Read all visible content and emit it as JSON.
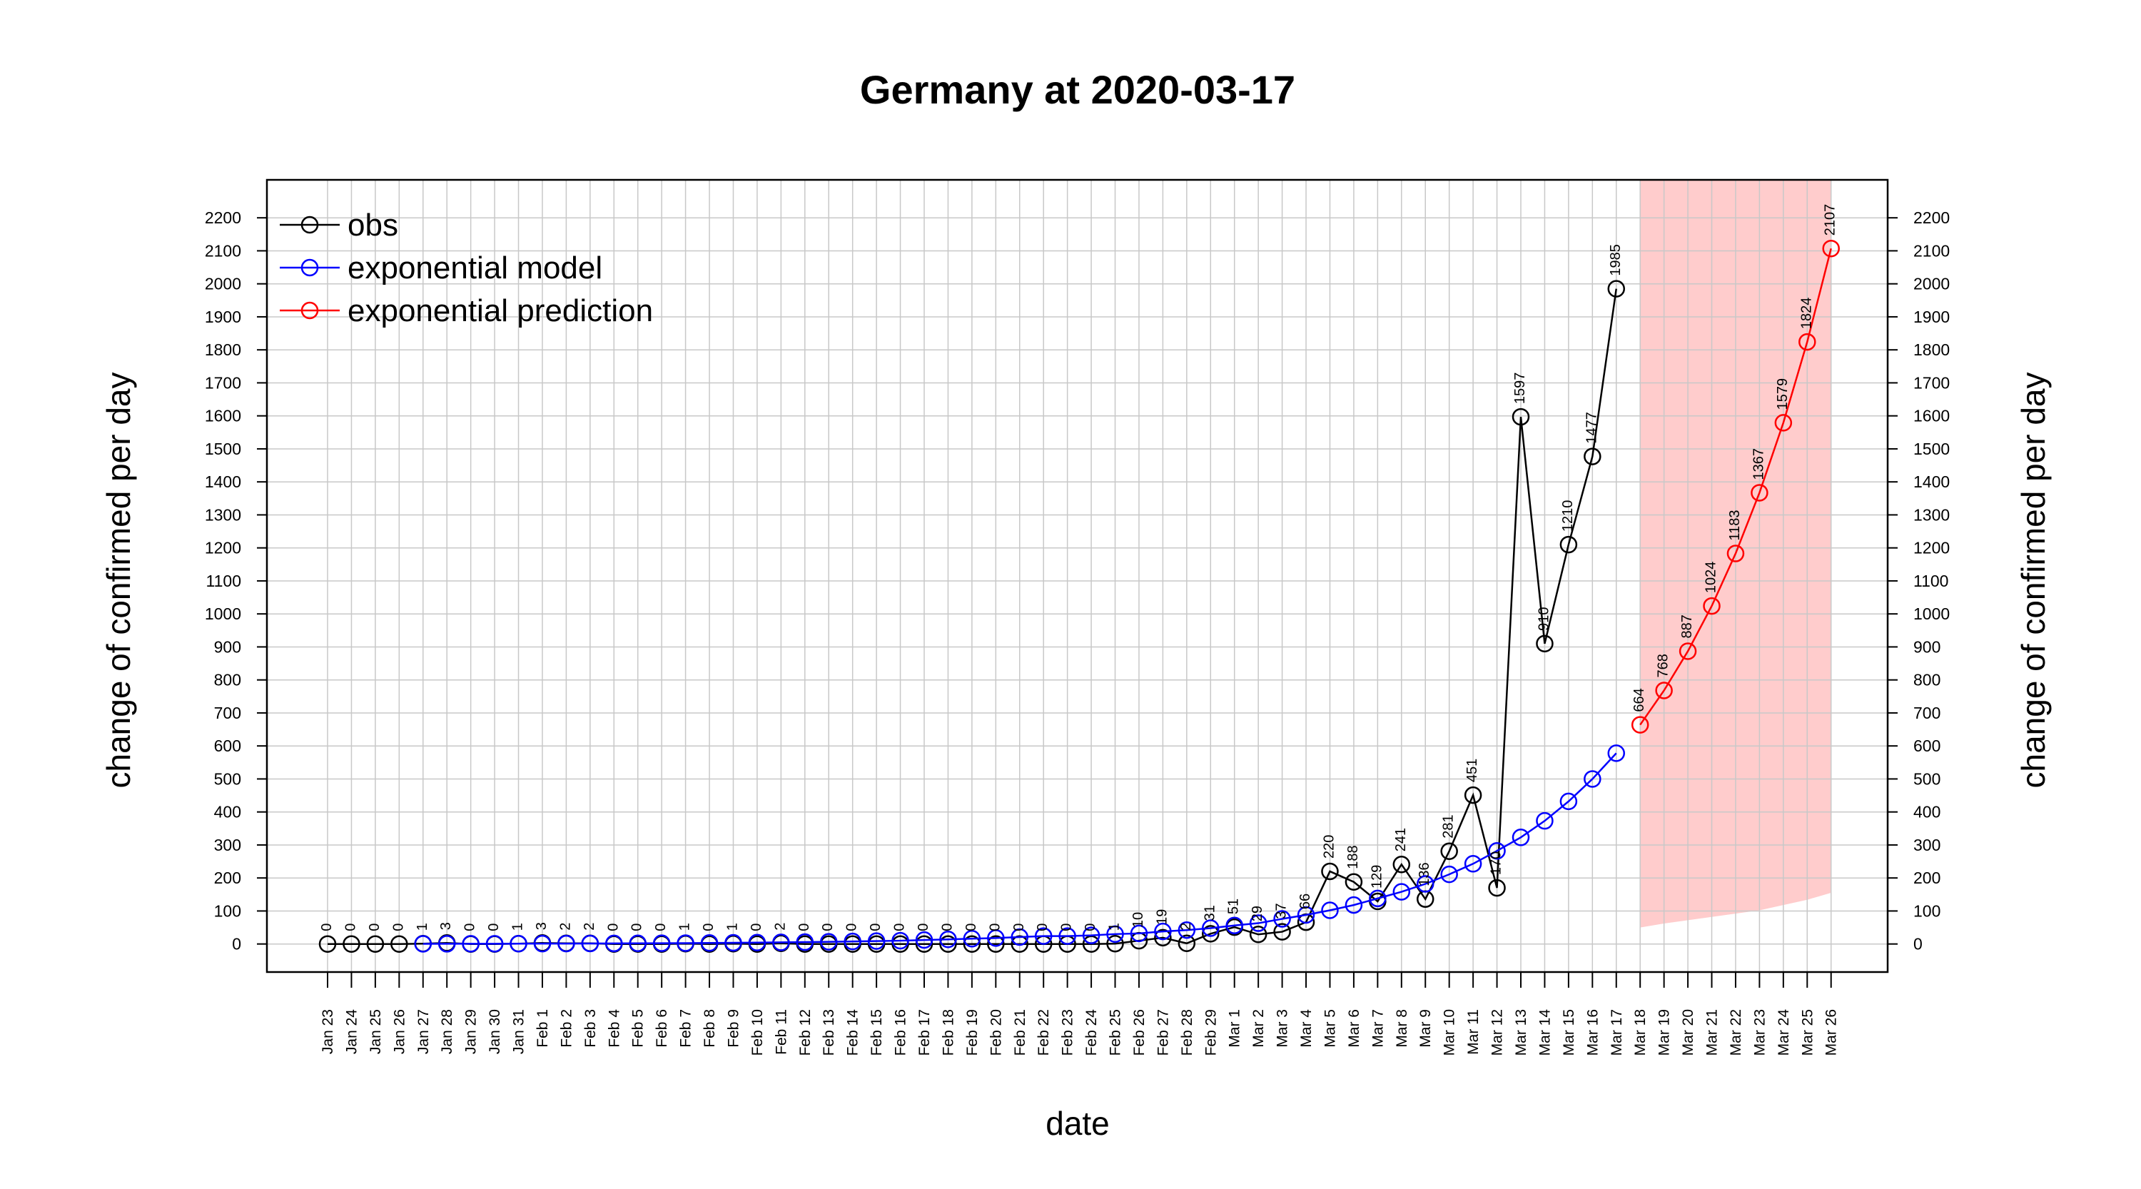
{
  "chart_data": {
    "type": "line",
    "title": "Germany at 2020-03-17",
    "xlabel": "date",
    "ylabel": "change of confirmed per day",
    "ylabel_right": "change of confirmed per day",
    "y_ticks": [
      0,
      100,
      200,
      300,
      400,
      500,
      600,
      700,
      800,
      900,
      1000,
      1100,
      1200,
      1300,
      1400,
      1500,
      1600,
      1700,
      1800,
      1900,
      2000,
      2100,
      2200
    ],
    "ylim": [
      -85,
      2315
    ],
    "grid": true,
    "legend_position": "top-left",
    "dates": [
      "Jan 23",
      "Jan 24",
      "Jan 25",
      "Jan 26",
      "Jan 27",
      "Jan 28",
      "Jan 29",
      "Jan 30",
      "Jan 31",
      "Feb 1",
      "Feb 2",
      "Feb 3",
      "Feb 4",
      "Feb 5",
      "Feb 6",
      "Feb 7",
      "Feb 8",
      "Feb 9",
      "Feb 10",
      "Feb 11",
      "Feb 12",
      "Feb 13",
      "Feb 14",
      "Feb 15",
      "Feb 16",
      "Feb 17",
      "Feb 18",
      "Feb 19",
      "Feb 20",
      "Feb 21",
      "Feb 22",
      "Feb 23",
      "Feb 24",
      "Feb 25",
      "Feb 26",
      "Feb 27",
      "Feb 28",
      "Feb 29",
      "Mar 1",
      "Mar 2",
      "Mar 3",
      "Mar 4",
      "Mar 5",
      "Mar 6",
      "Mar 7",
      "Mar 8",
      "Mar 9",
      "Mar 10",
      "Mar 11",
      "Mar 12",
      "Mar 13",
      "Mar 14",
      "Mar 15",
      "Mar 16",
      "Mar 17",
      "Mar 18",
      "Mar 19",
      "Mar 20",
      "Mar 21",
      "Mar 22",
      "Mar 23",
      "Mar 24",
      "Mar 25",
      "Mar 26"
    ],
    "series": [
      {
        "name": "obs",
        "color": "#000000",
        "x": [
          "Jan 23",
          "Jan 24",
          "Jan 25",
          "Jan 26",
          "Jan 27",
          "Jan 28",
          "Jan 29",
          "Jan 30",
          "Jan 31",
          "Feb 1",
          "Feb 2",
          "Feb 3",
          "Feb 4",
          "Feb 5",
          "Feb 6",
          "Feb 7",
          "Feb 8",
          "Feb 9",
          "Feb 10",
          "Feb 11",
          "Feb 12",
          "Feb 13",
          "Feb 14",
          "Feb 15",
          "Feb 16",
          "Feb 17",
          "Feb 18",
          "Feb 19",
          "Feb 20",
          "Feb 21",
          "Feb 22",
          "Feb 23",
          "Feb 24",
          "Feb 25",
          "Feb 26",
          "Feb 27",
          "Feb 28",
          "Feb 29",
          "Mar 1",
          "Mar 2",
          "Mar 3",
          "Mar 4",
          "Mar 5",
          "Mar 6",
          "Mar 7",
          "Mar 8",
          "Mar 9",
          "Mar 10",
          "Mar 11",
          "Mar 12",
          "Mar 13",
          "Mar 14",
          "Mar 15",
          "Mar 16",
          "Mar 17"
        ],
        "values": [
          0,
          0,
          0,
          0,
          1,
          3,
          0,
          0,
          1,
          3,
          2,
          2,
          0,
          0,
          0,
          1,
          0,
          1,
          0,
          2,
          0,
          0,
          0,
          0,
          0,
          0,
          0,
          0,
          0,
          0,
          0,
          0,
          0,
          1,
          10,
          19,
          2,
          31,
          51,
          29,
          37,
          66,
          220,
          188,
          129,
          241,
          136,
          281,
          451,
          170,
          1597,
          910,
          1210,
          1477,
          1985
        ],
        "labels": [
          "0",
          "0",
          "0",
          "0",
          "1",
          "3",
          "0",
          "0",
          "1",
          "3",
          "2",
          "2",
          "0",
          "0",
          "0",
          "1",
          "0",
          "1",
          "0",
          "2",
          "0",
          "0",
          "0",
          "0",
          "0",
          "0",
          "0",
          "0",
          "0",
          "0",
          "0",
          "0",
          "0",
          "1",
          "10",
          "19",
          "2",
          "31",
          "51",
          "29",
          "37",
          "66",
          "220",
          "188",
          "129",
          "241",
          "136",
          "281",
          "451",
          "170",
          "1597",
          "910",
          "1210",
          "1477",
          "1985"
        ]
      },
      {
        "name": "exponential model",
        "color": "#0000ff",
        "x": [
          "Jan 27",
          "Jan 28",
          "Jan 29",
          "Jan 30",
          "Jan 31",
          "Feb 1",
          "Feb 2",
          "Feb 3",
          "Feb 4",
          "Feb 5",
          "Feb 6",
          "Feb 7",
          "Feb 8",
          "Feb 9",
          "Feb 10",
          "Feb 11",
          "Feb 12",
          "Feb 13",
          "Feb 14",
          "Feb 15",
          "Feb 16",
          "Feb 17",
          "Feb 18",
          "Feb 19",
          "Feb 20",
          "Feb 21",
          "Feb 22",
          "Feb 23",
          "Feb 24",
          "Feb 25",
          "Feb 26",
          "Feb 27",
          "Feb 28",
          "Feb 29",
          "Mar 1",
          "Mar 2",
          "Mar 3",
          "Mar 4",
          "Mar 5",
          "Mar 6",
          "Mar 7",
          "Mar 8",
          "Mar 9",
          "Mar 10",
          "Mar 11",
          "Mar 12",
          "Mar 13",
          "Mar 14",
          "Mar 15",
          "Mar 16",
          "Mar 17"
        ],
        "values": [
          0.5,
          0.6,
          0.7,
          0.8,
          0.9,
          1.1,
          1.3,
          1.5,
          1.7,
          2,
          2.3,
          2.7,
          3.1,
          3.6,
          4.2,
          4.9,
          5.7,
          6.6,
          7.6,
          8.8,
          10,
          12,
          14,
          16,
          18,
          21,
          24,
          24,
          26,
          30,
          32,
          38,
          42,
          48,
          56,
          63,
          76,
          88,
          102,
          118,
          138,
          158,
          182,
          211,
          243,
          282,
          323,
          373,
          432,
          500,
          578
        ]
      },
      {
        "name": "exponential prediction",
        "color": "#ff0000",
        "x": [
          "Mar 18",
          "Mar 19",
          "Mar 20",
          "Mar 21",
          "Mar 22",
          "Mar 23",
          "Mar 24",
          "Mar 25",
          "Mar 26"
        ],
        "values": [
          664,
          768,
          887,
          1024,
          1183,
          1367,
          1579,
          1824,
          2107
        ],
        "labels": [
          "664",
          "768",
          "887",
          "1024",
          "1183",
          "1367",
          "1579",
          "1824",
          "2107"
        ]
      }
    ],
    "prediction_band": {
      "color": "#ffcccc",
      "x": [
        "Mar 18",
        "Mar 19",
        "Mar 20",
        "Mar 21",
        "Mar 22",
        "Mar 23",
        "Mar 24",
        "Mar 25",
        "Mar 26"
      ],
      "lower": [
        50,
        62,
        72,
        82,
        92,
        102,
        118,
        134,
        155
      ],
      "upper": [
        2315,
        2315,
        2315,
        2315,
        2315,
        2315,
        2315,
        2315,
        2315
      ]
    }
  }
}
